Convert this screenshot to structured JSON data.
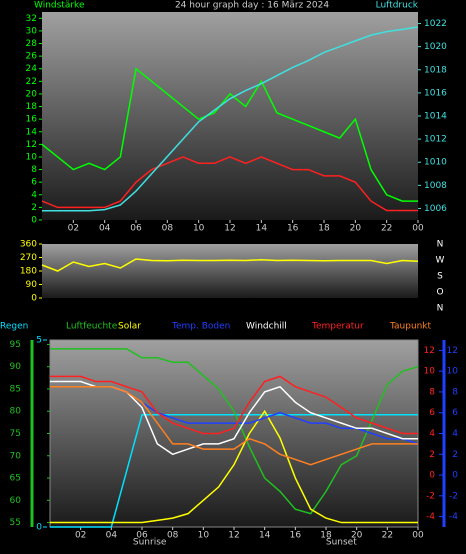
{
  "chart_data": [
    {
      "type": "line",
      "title": "24 hour graph day : 16 März 2024",
      "y_label": "Windstärke",
      "y2_label": "Luftdruck",
      "x": [
        0,
        1,
        2,
        3,
        4,
        5,
        6,
        7,
        8,
        9,
        10,
        11,
        12,
        13,
        14,
        15,
        16,
        17,
        18,
        19,
        20,
        21,
        22,
        23,
        24
      ],
      "xlim": [
        0,
        24
      ],
      "xticks": [
        {
          "value": 2,
          "label": "02"
        },
        {
          "value": 4,
          "label": "04"
        },
        {
          "value": 6,
          "label": "06"
        },
        {
          "value": 8,
          "label": "08"
        },
        10,
        12,
        14,
        16,
        18,
        20,
        22,
        {
          "value": 24,
          "label": "00"
        }
      ],
      "ylim": [
        0,
        33
      ],
      "yticks": [
        0,
        2,
        4,
        6,
        8,
        10,
        12,
        14,
        16,
        18,
        20,
        22,
        24,
        26,
        28,
        30,
        32
      ],
      "y2lim": [
        1005,
        1023
      ],
      "y2ticks": [
        1006,
        1008,
        1010,
        1012,
        1014,
        1016,
        1018,
        1020,
        1022
      ],
      "series": [
        {
          "name": "Böen",
          "color": "#00ff00",
          "values": [
            12,
            10,
            8,
            9,
            8,
            10,
            24,
            22,
            20,
            18,
            16,
            17,
            20,
            18,
            22,
            17,
            16,
            15,
            14,
            13,
            16,
            8,
            4,
            3,
            3
          ]
        },
        {
          "name": "Mittel",
          "color": "#ff2020",
          "values": [
            3,
            2,
            2,
            2,
            2,
            3,
            6,
            8,
            9,
            10,
            9,
            9,
            10,
            9,
            10,
            9,
            8,
            8,
            7,
            7,
            6,
            3,
            1.5,
            1.5,
            1.5
          ]
        },
        {
          "name": "Luftdruck",
          "color": "#40e0e0",
          "axis": "y2",
          "values": [
            1005.8,
            1005.8,
            1005.8,
            1005.8,
            1005.9,
            1006.3,
            1007.5,
            1009,
            1010.5,
            1012,
            1013.5,
            1014.5,
            1015.5,
            1016.2,
            1016.8,
            1017.5,
            1018.2,
            1018.8,
            1019.5,
            1020,
            1020.5,
            1021,
            1021.3,
            1021.5,
            1021.7
          ]
        }
      ]
    },
    {
      "type": "line",
      "x": [
        0,
        1,
        2,
        3,
        4,
        5,
        6,
        7,
        8,
        9,
        10,
        11,
        12,
        13,
        14,
        15,
        16,
        17,
        18,
        19,
        20,
        21,
        22,
        23,
        24
      ],
      "xlim": [
        0,
        24
      ],
      "ylim": [
        0,
        360
      ],
      "yticks": [
        0,
        90,
        180,
        270,
        360
      ],
      "direction_labels": [
        "N",
        "W",
        "S",
        "O",
        "N"
      ],
      "series": [
        {
          "name": "Windrichtung",
          "color": "#ffff00",
          "values": [
            220,
            180,
            240,
            210,
            230,
            200,
            260,
            250,
            248,
            252,
            250,
            250,
            252,
            250,
            255,
            250,
            252,
            250,
            248,
            250,
            250,
            250,
            230,
            250,
            245
          ]
        }
      ]
    },
    {
      "type": "line",
      "x": [
        0,
        1,
        2,
        3,
        4,
        5,
        6,
        7,
        8,
        9,
        10,
        11,
        12,
        13,
        14,
        15,
        16,
        17,
        18,
        19,
        20,
        21,
        22,
        23,
        24
      ],
      "xlim": [
        0,
        24
      ],
      "xticks": [
        {
          "value": 2,
          "label": "02"
        },
        {
          "value": 4,
          "label": "04"
        },
        {
          "value": 6,
          "label": "06"
        },
        {
          "value": 8,
          "label": "08"
        },
        10,
        12,
        14,
        16,
        18,
        20,
        22,
        {
          "value": 24,
          "label": "00"
        }
      ],
      "ylim": [
        54,
        96
      ],
      "yticks": [
        55,
        60,
        65,
        70,
        75,
        80,
        85,
        90,
        95
      ],
      "y2lim": [
        -5,
        13
      ],
      "y2ticks": [
        -4,
        -2,
        0,
        2,
        4,
        6,
        8,
        10,
        12
      ],
      "y3lim": [
        0,
        5
      ],
      "y3ticks": [
        0,
        5
      ],
      "annotations": [
        {
          "text": "Sunrise",
          "x": 6.5
        },
        {
          "text": "Sunset",
          "x": 19
        }
      ],
      "series": [
        {
          "name": "Regen",
          "color": "#00e0ff",
          "axis": "y3",
          "values": [
            0,
            0,
            0,
            0,
            0,
            1.5,
            3,
            3,
            3,
            3,
            3,
            3,
            3,
            3,
            3,
            3,
            3,
            3,
            3,
            3,
            3,
            3,
            3,
            3,
            3
          ]
        },
        {
          "name": "Luftfeuchte",
          "color": "#20c020",
          "values": [
            94,
            94,
            94,
            94,
            94,
            94,
            92,
            92,
            91,
            91,
            88,
            85,
            80,
            72,
            65,
            62,
            58,
            57,
            62,
            68,
            70,
            78,
            86,
            89,
            90
          ]
        },
        {
          "name": "Solar",
          "color": "#ffff00",
          "values": [
            55,
            55,
            55,
            55,
            55,
            55,
            55,
            55.5,
            56,
            57,
            60,
            63,
            68,
            75,
            80,
            74,
            65,
            58,
            56,
            55,
            55,
            55,
            55,
            55,
            55
          ]
        },
        {
          "name": "Temp. Boden",
          "color": "#2040ff",
          "axis": "y2",
          "values": [
            8.5,
            8.5,
            8.5,
            8.5,
            8.5,
            8,
            7,
            6,
            5.5,
            5,
            5,
            5,
            5,
            5,
            5.5,
            6,
            5.5,
            5,
            5,
            4.5,
            4.5,
            4,
            3.5,
            3.5,
            3
          ]
        },
        {
          "name": "Windchill",
          "color": "#ffffff",
          "axis": "y2",
          "values": [
            9,
            9,
            9,
            8.5,
            8.5,
            8,
            6.5,
            3,
            2,
            2.5,
            3,
            3,
            3.5,
            6,
            8,
            8.5,
            7,
            6,
            5.5,
            5,
            4.5,
            4.5,
            4,
            3.5,
            3.5
          ]
        },
        {
          "name": "Temperatur",
          "color": "#ff2020",
          "axis": "y2",
          "values": [
            9.5,
            9.5,
            9.5,
            9,
            9,
            8.5,
            8,
            6,
            5,
            4.5,
            4,
            4,
            4.5,
            7,
            9,
            9.5,
            8.5,
            8,
            7.5,
            6.5,
            5.5,
            5,
            4.5,
            4,
            4
          ]
        },
        {
          "name": "Taupunkt",
          "color": "#ff8020",
          "axis": "y2",
          "values": [
            8.5,
            8.5,
            8.5,
            8.5,
            8.5,
            8,
            7,
            5,
            3,
            3,
            2.5,
            2.5,
            2.5,
            3.5,
            3,
            2,
            1.5,
            1,
            1.5,
            2,
            2.5,
            3,
            3,
            3,
            3
          ]
        }
      ]
    }
  ]
}
